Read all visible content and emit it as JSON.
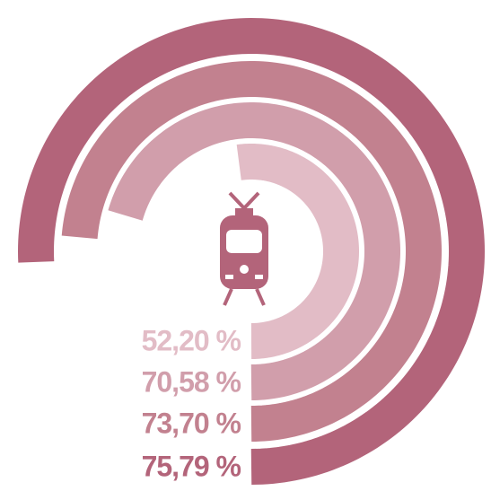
{
  "chart_data": {
    "type": "radial_bar",
    "categories": [
      "52,20 %",
      "70,58 %",
      "73,70 %",
      "75,79 %"
    ],
    "values": [
      52.2,
      70.58,
      73.7,
      75.79
    ],
    "value_labels": [
      "52,20 %",
      "70,58 %",
      "73,70 %",
      "75,79 %"
    ],
    "colors": [
      "#e2bcc6",
      "#d19eab",
      "#c2818f",
      "#b3647a"
    ],
    "ylim": [
      0,
      100
    ]
  }
}
